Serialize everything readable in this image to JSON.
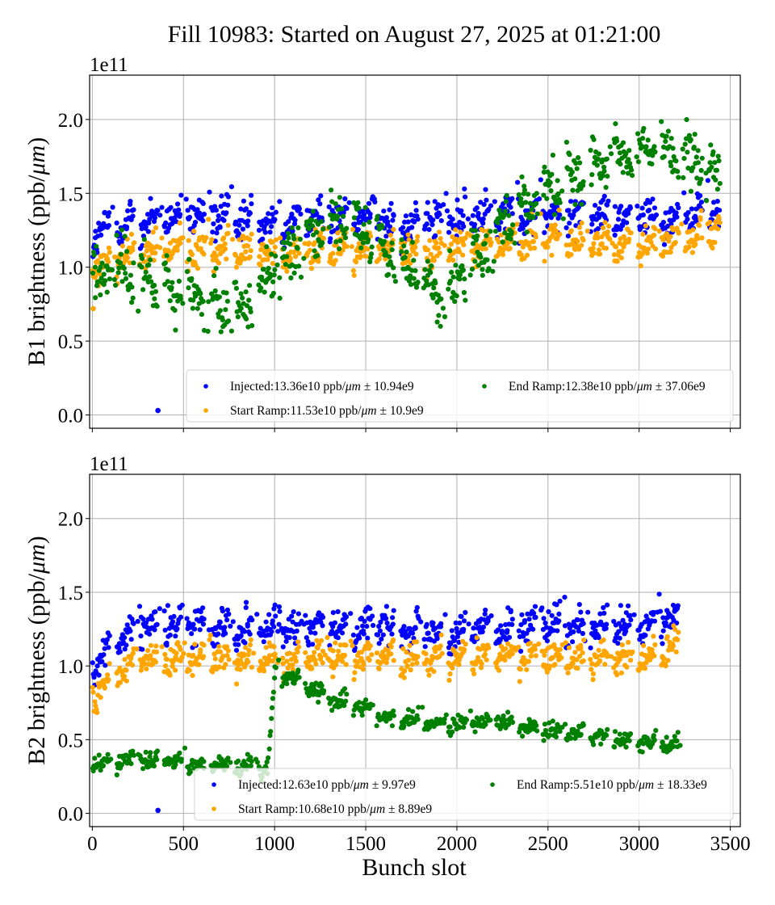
{
  "chart_data": [
    {
      "type": "scatter",
      "panel": "B1",
      "title": "Fill 10983: Started on August 27, 2025 at 01:21:00",
      "xlabel": "",
      "ylabel": "B1 brightness (ppb/μm)",
      "y_offset_label": "1e11",
      "xlim": [
        -15,
        3555
      ],
      "ylim": [
        -0.09,
        2.3
      ],
      "y_scale": 100000000000.0,
      "x_ticks": [
        0,
        500,
        1000,
        1500,
        2000,
        2500,
        3000,
        3500
      ],
      "x_tick_labels_visible": false,
      "y_ticks": [
        0.0,
        0.5,
        1.0,
        1.5,
        2.0
      ],
      "y_tick_labels": [
        "0.0",
        "0.5",
        "1.0",
        "1.5",
        "2.0"
      ],
      "grid": true,
      "legend": {
        "placement": "lower-right",
        "columns": 2
      },
      "series": [
        {
          "name": "Injected",
          "legend_label": "Injected:13.36e10 ppb/μm ± 10.94e9",
          "color": "#0000ff",
          "x_range": [
            0,
            3440
          ],
          "profile_x": [
            0,
            250,
            500,
            750,
            1000,
            1250,
            1500,
            1750,
            2000,
            2250,
            2500,
            2750,
            3000,
            3250,
            3440
          ],
          "profile_y": [
            1.22,
            1.32,
            1.33,
            1.35,
            1.3,
            1.34,
            1.33,
            1.3,
            1.33,
            1.35,
            1.36,
            1.35,
            1.34,
            1.32,
            1.4
          ],
          "spread": 0.11,
          "outliers": [
            {
              "x": 360,
              "y": 0.03
            }
          ]
        },
        {
          "name": "Start Ramp",
          "legend_label": "Start Ramp:11.53e10 ppb/μm ± 10.9e9",
          "color": "#ffa500",
          "x_range": [
            0,
            3440
          ],
          "profile_x": [
            0,
            250,
            500,
            750,
            1000,
            1250,
            1500,
            1750,
            2000,
            2250,
            2500,
            2750,
            3000,
            3250,
            3440
          ],
          "profile_y": [
            0.98,
            1.1,
            1.12,
            1.13,
            1.08,
            1.14,
            1.12,
            1.1,
            1.13,
            1.16,
            1.18,
            1.17,
            1.16,
            1.18,
            1.3
          ],
          "spread": 0.1,
          "outliers": [
            {
              "x": 5,
              "y": 0.72
            }
          ]
        },
        {
          "name": "End Ramp",
          "legend_label": "End Ramp:12.38e10 ppb/μm ± 37.06e9",
          "color": "#008000",
          "x_range": [
            0,
            3440
          ],
          "profile_x": [
            0,
            100,
            250,
            400,
            550,
            700,
            850,
            1000,
            1150,
            1300,
            1450,
            1600,
            1750,
            1900,
            2050,
            2200,
            2350,
            2500,
            2650,
            2800,
            2950,
            3100,
            3250,
            3440
          ],
          "profile_y": [
            0.92,
            0.98,
            0.95,
            0.88,
            0.8,
            0.72,
            0.75,
            0.98,
            1.15,
            1.35,
            1.3,
            1.1,
            0.95,
            0.85,
            1.0,
            1.2,
            1.4,
            1.55,
            1.6,
            1.7,
            1.78,
            1.85,
            1.72,
            1.65
          ],
          "spread": 0.16
        }
      ]
    },
    {
      "type": "scatter",
      "panel": "B2",
      "xlabel": "Bunch slot",
      "ylabel": "B2 brightness (ppb/μm)",
      "y_offset_label": "1e11",
      "xlim": [
        -15,
        3555
      ],
      "ylim": [
        -0.09,
        2.3
      ],
      "y_scale": 100000000000.0,
      "x_ticks": [
        0,
        500,
        1000,
        1500,
        2000,
        2500,
        3000,
        3500
      ],
      "x_tick_labels": [
        "0",
        "500",
        "1000",
        "1500",
        "2000",
        "2500",
        "3000",
        "3500"
      ],
      "y_ticks": [
        0.0,
        0.5,
        1.0,
        1.5,
        2.0
      ],
      "y_tick_labels": [
        "0.0",
        "0.5",
        "1.0",
        "1.5",
        "2.0"
      ],
      "grid": true,
      "legend": {
        "placement": "lower-right",
        "columns": 2
      },
      "series": [
        {
          "name": "Injected",
          "legend_label": "Injected:12.63e10 ppb/μm ± 9.97e9",
          "color": "#0000ff",
          "x_range": [
            0,
            3230
          ],
          "profile_x": [
            0,
            250,
            500,
            750,
            1000,
            1250,
            1500,
            1750,
            2000,
            2250,
            2500,
            2750,
            3000,
            3230
          ],
          "profile_y": [
            1.0,
            1.27,
            1.28,
            1.27,
            1.25,
            1.26,
            1.28,
            1.25,
            1.24,
            1.26,
            1.28,
            1.25,
            1.27,
            1.33
          ],
          "spread": 0.1,
          "outliers": [
            {
              "x": 360,
              "y": 0.02
            }
          ]
        },
        {
          "name": "Start Ramp",
          "legend_label": "Start Ramp:10.68e10 ppb/μm ± 8.89e9",
          "color": "#ffa500",
          "x_range": [
            0,
            3230
          ],
          "profile_x": [
            0,
            250,
            500,
            750,
            1000,
            1250,
            1500,
            1750,
            2000,
            2250,
            2500,
            2750,
            3000,
            3230
          ],
          "profile_y": [
            0.8,
            1.05,
            1.05,
            1.06,
            1.03,
            1.06,
            1.07,
            1.05,
            1.06,
            1.06,
            1.06,
            1.05,
            1.04,
            1.15
          ],
          "spread": 0.09
        },
        {
          "name": "End Ramp",
          "legend_label": "End Ramp:5.51e10 ppb/μm ± 18.33e9",
          "color": "#008000",
          "x_range": [
            0,
            3230
          ],
          "profile_x": [
            0,
            200,
            400,
            600,
            800,
            960,
            1000,
            1150,
            1300,
            1450,
            1600,
            1800,
            2000,
            2200,
            2400,
            2600,
            2800,
            3000,
            3230
          ],
          "profile_y": [
            0.33,
            0.38,
            0.36,
            0.33,
            0.32,
            0.3,
            0.98,
            0.88,
            0.78,
            0.72,
            0.66,
            0.62,
            0.6,
            0.62,
            0.58,
            0.55,
            0.52,
            0.48,
            0.46
          ],
          "spread": 0.05
        }
      ]
    }
  ]
}
